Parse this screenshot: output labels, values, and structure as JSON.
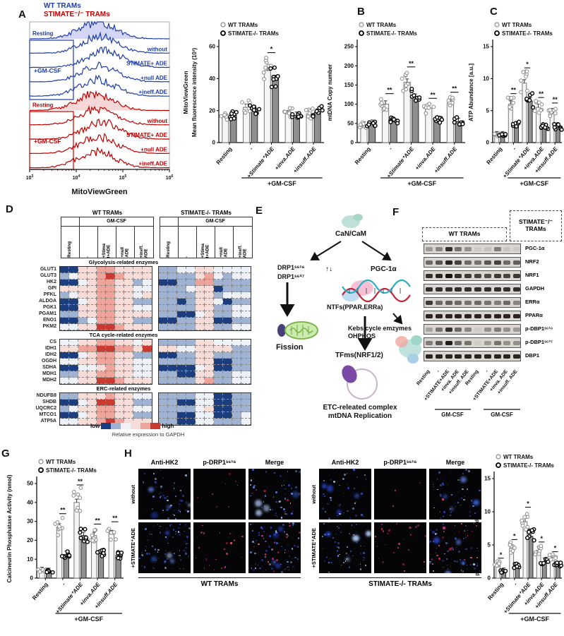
{
  "colors": {
    "wt_blue": "#1f3da8",
    "ko_red": "#c00000",
    "bar_wt_fill": "#f5f5f5",
    "bar_wt_stroke": "#7a7a7a",
    "bar_ko_fill": "#8f8f8f",
    "bar_ko_stroke": "#2a2a2a",
    "heat_palette": [
      "#1d3e7e",
      "#9fb2d2",
      "#eef1f7",
      "#f7dcd8",
      "#efa49b",
      "#c93a31"
    ],
    "if_blue": [
      "#2a47d8",
      "#6e93ff",
      "#b9d4ff",
      "#3b6cf0"
    ],
    "if_red": [
      "#ff2a55",
      "#e0379e",
      "#ff5f7a"
    ]
  },
  "shared": {
    "legend_wt": "WT TRAMs",
    "legend_ko": "STIMATE-/- TRAMs",
    "gmcsf": "+GM-CSF"
  },
  "panel_a": {
    "label": "A",
    "header_wt": "WT TRAMs",
    "header_ko": "STIMATE⁻/⁻ TRAMs",
    "flow": {
      "xlabel": "MitoViewGreen",
      "x_exponents": [
        3,
        4,
        5,
        6
      ],
      "gmcsf": "+GM-CSF",
      "row_labels": [
        "Resting",
        "without",
        "STIMATE+ ADE",
        "+null ADE",
        "+ineff.ADE"
      ],
      "peak_log10": [
        4.45,
        4.5,
        4.62,
        4.5,
        4.46,
        4.4,
        4.48,
        4.55,
        4.47,
        4.43
      ]
    }
  },
  "panel_b": {
    "label": "B"
  },
  "panel_c": {
    "label": "C"
  },
  "panel_d": {
    "label": "D",
    "header_wt": "WT TRAMs",
    "header_ko": "STIMATE-/- TRAMs",
    "gmcsf": "GM-CSF",
    "col_labels": [
      "Resting",
      "-",
      "+Stima\nt+ADE",
      "+null\nADE",
      "+ineff.\nADE"
    ],
    "sections": [
      {
        "title": "Glycolysis-related enzymes",
        "rows": [
          {
            "name": "GLUT1",
            "wt": [
              0,
              0,
              3,
              3,
              4,
              4,
              3,
              3,
              3,
              3
            ],
            "ko": [
              1,
              1,
              2,
              2,
              3,
              3,
              2,
              2,
              2,
              2
            ]
          },
          {
            "name": "GLUT3",
            "wt": [
              1,
              2,
              3,
              3,
              4,
              5,
              4,
              3,
              3,
              3
            ],
            "ko": [
              1,
              1,
              1,
              1,
              3,
              4,
              2,
              1,
              2,
              2
            ]
          },
          {
            "name": "HK2",
            "wt": [
              0,
              0,
              2,
              3,
              4,
              4,
              3,
              3,
              1,
              2
            ],
            "ko": [
              0,
              0,
              1,
              1,
              4,
              4,
              1,
              1,
              1,
              1
            ]
          },
          {
            "name": "GPI",
            "wt": [
              3,
              3,
              3,
              3,
              4,
              4,
              3,
              3,
              2,
              2
            ],
            "ko": [
              1,
              1,
              1,
              2,
              3,
              3,
              0,
              1,
              1,
              1
            ]
          },
          {
            "name": "PFKL",
            "wt": [
              1,
              2,
              3,
              3,
              4,
              4,
              3,
              3,
              2,
              3
            ],
            "ko": [
              1,
              1,
              1,
              1,
              3,
              3,
              1,
              2,
              2,
              2
            ]
          },
          {
            "name": "ALDOA",
            "wt": [
              0,
              0,
              2,
              3,
              4,
              4,
              3,
              3,
              1,
              1
            ],
            "ko": [
              1,
              1,
              0,
              1,
              3,
              3,
              2,
              0,
              1,
              1
            ]
          },
          {
            "name": "PGK1",
            "wt": [
              0,
              0,
              3,
              3,
              4,
              4,
              3,
              3,
              2,
              2
            ],
            "ko": [
              1,
              1,
              1,
              1,
              3,
              3,
              1,
              1,
              2,
              2
            ]
          },
          {
            "name": "PGAM1",
            "wt": [
              1,
              1,
              3,
              3,
              4,
              4,
              3,
              3,
              3,
              3
            ],
            "ko": [
              1,
              1,
              0,
              0,
              2,
              3,
              1,
              1,
              2,
              2
            ]
          },
          {
            "name": "ENO1",
            "wt": [
              0,
              0,
              1,
              2,
              4,
              4,
              3,
              3,
              1,
              1
            ],
            "ko": [
              0,
              0,
              1,
              1,
              3,
              3,
              0,
              0,
              1,
              1
            ]
          },
          {
            "name": "PKM2",
            "wt": [
              2,
              2,
              3,
              3,
              5,
              5,
              4,
              3,
              3,
              3
            ],
            "ko": [
              1,
              1,
              1,
              1,
              3,
              3,
              1,
              1,
              2,
              2
            ]
          }
        ]
      },
      {
        "title": "TCA cycle-related enzymes",
        "rows": [
          {
            "name": "CS",
            "wt": [
              2,
              2,
              3,
              3,
              4,
              4,
              3,
              3,
              2,
              3
            ],
            "ko": [
              1,
              1,
              1,
              1,
              3,
              3,
              2,
              2,
              2,
              2
            ]
          },
          {
            "name": "IDH1",
            "wt": [
              3,
              3,
              4,
              4,
              5,
              5,
              4,
              4,
              3,
              5
            ],
            "ko": [
              3,
              3,
              2,
              2,
              3,
              3,
              3,
              3,
              1,
              1
            ]
          },
          {
            "name": "IDH2",
            "wt": [
              0,
              0,
              2,
              3,
              4,
              4,
              3,
              3,
              1,
              1
            ],
            "ko": [
              0,
              0,
              1,
              1,
              3,
              3,
              1,
              1,
              1,
              1
            ]
          },
          {
            "name": "OGDH",
            "wt": [
              2,
              2,
              3,
              3,
              4,
              4,
              3,
              3,
              2,
              2
            ],
            "ko": [
              1,
              1,
              1,
              1,
              3,
              3,
              0,
              0,
              1,
              1
            ]
          },
          {
            "name": "SDHA",
            "wt": [
              0,
              0,
              2,
              2,
              3,
              4,
              3,
              3,
              2,
              2
            ],
            "ko": [
              0,
              0,
              0,
              0,
              2,
              3,
              0,
              0,
              1,
              1
            ]
          },
          {
            "name": "MDH1",
            "wt": [
              1,
              1,
              3,
              3,
              4,
              4,
              3,
              3,
              2,
              2
            ],
            "ko": [
              1,
              1,
              0,
              0,
              3,
              3,
              1,
              1,
              2,
              2
            ]
          },
          {
            "name": "MDH2",
            "wt": [
              2,
              2,
              3,
              3,
              5,
              5,
              4,
              3,
              3,
              3
            ],
            "ko": [
              1,
              1,
              1,
              1,
              3,
              4,
              1,
              1,
              2,
              2
            ]
          }
        ]
      },
      {
        "title": "ERC-related enzymes",
        "rows": [
          {
            "name": "NDUFB8",
            "wt": [
              1,
              1,
              3,
              3,
              3,
              4,
              3,
              3,
              2,
              2
            ],
            "ko": [
              1,
              1,
              1,
              1,
              2,
              2,
              0,
              0,
              1,
              1
            ]
          },
          {
            "name": "SHDB",
            "wt": [
              0,
              0,
              2,
              3,
              5,
              5,
              3,
              3,
              1,
              1
            ],
            "ko": [
              1,
              1,
              0,
              0,
              2,
              2,
              0,
              0,
              1,
              1
            ]
          },
          {
            "name": "UQCRC2",
            "wt": [
              1,
              2,
              3,
              3,
              4,
              4,
              3,
              3,
              2,
              2
            ],
            "ko": [
              1,
              1,
              1,
              1,
              2,
              3,
              0,
              0,
              1,
              1
            ]
          },
          {
            "name": "MTCO1",
            "wt": [
              0,
              0,
              2,
              3,
              4,
              4,
              3,
              3,
              1,
              1
            ],
            "ko": [
              1,
              1,
              0,
              0,
              2,
              2,
              0,
              0,
              1,
              2
            ]
          },
          {
            "name": "ATP5A",
            "wt": [
              2,
              2,
              3,
              3,
              4,
              5,
              4,
              3,
              3,
              3
            ],
            "ko": [
              1,
              1,
              0,
              0,
              2,
              2,
              1,
              1,
              1,
              2
            ]
          }
        ]
      }
    ],
    "legend": {
      "low": "low",
      "high": "high",
      "caption": "Relative expression to GAPDH"
    }
  },
  "panel_e": {
    "label": "E",
    "nodes": {
      "cancam": "CaN/CaM",
      "drp1a": "DRP1ˢ⁶¹⁶",
      "drp1b": "DRP1ˢ⁶³⁷",
      "updown": "↑↓",
      "pgc": "PGC-1α",
      "ntfs": "NTFs(PPAR,ERRa)",
      "kebs": "Kebs cycle emzymes\nOHPHOS",
      "tfms": "TFms(NRF1/2)",
      "fission": "Fission",
      "etc": "ETC-releated complex\nmtDNA Replication"
    }
  },
  "panel_f": {
    "label": "F",
    "header_wt": "WT TRAMs",
    "header_ko": "STIMATE⁻/⁻\nTRAMs",
    "blots": [
      {
        "name": "PGC-1α",
        "bands": [
          0.3,
          0.4,
          0.85,
          0.5,
          0.35,
          0.05,
          0.1,
          0.45,
          0.08,
          0.05
        ]
      },
      {
        "name": "NRF2",
        "bands": [
          0.55,
          0.65,
          0.9,
          0.75,
          0.55,
          0.5,
          0.65,
          0.75,
          0.55,
          0.6
        ]
      },
      {
        "name": "NRF1",
        "bands": [
          0.85,
          0.9,
          1,
          0.85,
          0.8,
          0.75,
          0.7,
          0.8,
          0.75,
          0.8
        ]
      },
      {
        "name": "GAPDH",
        "bands": [
          0.85,
          0.85,
          0.85,
          0.85,
          0.85,
          0.85,
          0.85,
          0.85,
          0.85,
          0.85
        ]
      },
      {
        "name": "ERRα",
        "bands": [
          0.8,
          0.55,
          0.6,
          0.55,
          0.5,
          0.55,
          0.5,
          0.45,
          0.55,
          0.4
        ]
      },
      {
        "name": "PPARα",
        "bands": [
          0.9,
          0.9,
          0.9,
          0.9,
          0.9,
          0.9,
          0.9,
          0.9,
          0.9,
          0.9
        ]
      },
      {
        "name": "p-DBP1ˢ⁶¹⁶",
        "bands": [
          0.25,
          0.5,
          0.85,
          0.55,
          0.4,
          0.05,
          0.35,
          0.45,
          0.35,
          0.3
        ]
      },
      {
        "name": "p-DBP1ˢ⁶³⁷",
        "bands": [
          0.45,
          0.65,
          0.95,
          0.55,
          0.5,
          0.05,
          0.3,
          0.5,
          0.35,
          0.35
        ]
      },
      {
        "name": "DBP1",
        "bands": [
          0.9,
          0.9,
          0.9,
          0.9,
          0.9,
          0.9,
          0.9,
          0.9,
          0.9,
          0.9
        ]
      }
    ],
    "lane_labels": [
      "Resting",
      "-",
      "+STIMATE+ADE",
      "+inva. ADE",
      "+insuff. ADE",
      "Resting",
      "-",
      "+STIMATE+ADE",
      "+inva. ADE",
      "+insuff. ADE"
    ],
    "gmcsf": "GM-CSF"
  },
  "panel_g": {
    "label": "G"
  },
  "panel_h": {
    "label": "H",
    "col_headers": [
      "Anti-HK2",
      "p-DRP1ˢ⁶¹⁶",
      "Merge"
    ],
    "row_labels": [
      "without",
      "+STIMATE⁺ADE"
    ],
    "group_labels": [
      "WT TRAMs",
      "STIMATE-/- TRAMs"
    ]
  },
  "chart_data": [
    {
      "id": "chartA",
      "panel": "A",
      "type": "bar",
      "ylabel_outer": "MitoViewGreen",
      "ylabel": "Mean fluorescence intensity (10³)",
      "ylim": [
        0,
        60
      ],
      "yticks": [
        0,
        20,
        40,
        60
      ],
      "categories": [
        "Resting",
        "-",
        "+Stimate⁺ADE",
        "+inva.ADE",
        "+insuff.ADE"
      ],
      "series": [
        {
          "name": "WT TRAMs",
          "values": [
            16,
            22,
            45,
            18,
            18
          ]
        },
        {
          "name": "STIMATE-/- TRAMs",
          "values": [
            17,
            21,
            40,
            17,
            19
          ]
        }
      ],
      "sig": [
        "",
        "",
        "*",
        "",
        ""
      ],
      "group_line_label": "+GM-CSF"
    },
    {
      "id": "chartB",
      "panel": "B",
      "type": "bar",
      "ylabel": "mtDNA Copy number",
      "ylim": [
        0,
        250
      ],
      "yticks": [
        0,
        50,
        100,
        150,
        200,
        250
      ],
      "categories": [
        "Resting",
        "-",
        "+Stimate⁺ADE",
        "+inva.ADE",
        "+insuff.ADE"
      ],
      "series": [
        {
          "name": "WT TRAMs",
          "values": [
            45,
            100,
            157,
            90,
            103
          ]
        },
        {
          "name": "STIMATE-/- TRAMs",
          "values": [
            50,
            57,
            118,
            60,
            55
          ]
        }
      ],
      "sig": [
        "",
        "**",
        "**",
        "**",
        "**"
      ],
      "group_line_label": "+GM-CSF"
    },
    {
      "id": "chartC",
      "panel": "C",
      "type": "bar",
      "ylabel": "ATP Abundance [a.u.]",
      "ylim": [
        0,
        15
      ],
      "yticks": [
        0,
        5,
        10,
        15
      ],
      "categories": [
        "Resting",
        "-",
        "+Stimate⁺ADE",
        "+inva.ADE",
        "+insuff.ADE"
      ],
      "series": [
        {
          "name": "WT TRAMs",
          "values": [
            1.2,
            6,
            9.3,
            5.5,
            4.8
          ]
        },
        {
          "name": "STIMATE-/- TRAMs",
          "values": [
            1.2,
            2.7,
            6.5,
            2.4,
            2.4
          ]
        }
      ],
      "sig": [
        "",
        "**",
        "*",
        "**",
        "**"
      ],
      "group_line_label": "+GM-CSF"
    },
    {
      "id": "chartG",
      "panel": "G",
      "type": "bar",
      "ylabel": "Calcineurin Phosphatase Activity (nmol)",
      "ylim": [
        0,
        50
      ],
      "yticks": [
        0,
        10,
        20,
        30,
        40,
        50
      ],
      "categories": [
        "Resting",
        "-",
        "+Stimate⁺ADE",
        "+inva.ADE",
        "+insuff.ADE"
      ],
      "series": [
        {
          "name": "WT TRAMs",
          "values": [
            4,
            27,
            40,
            22.5,
            23.5
          ]
        },
        {
          "name": "STIMATE-/- TRAMs",
          "values": [
            3.5,
            12.5,
            22.5,
            13,
            12
          ]
        }
      ],
      "sig": [
        "",
        "**",
        "**",
        "**",
        "**"
      ],
      "group_line_label": "+GM-CSF"
    },
    {
      "id": "chartH",
      "panel": "H",
      "type": "bar",
      "ylabel": "p-DRP1ˢ⁶¹⁶ mitochondrial translocation",
      "ylim": [
        0,
        15
      ],
      "yticks": [
        0,
        5,
        10,
        15
      ],
      "categories": [
        "Resting",
        "-",
        "+Stimate⁺ADE",
        "+inva.ADE",
        "+insuff.ADE"
      ],
      "series": [
        {
          "name": "WT TRAMs",
          "values": [
            2.2,
            4.5,
            8.5,
            4.2,
            3
          ]
        },
        {
          "name": "STIMATE-/- TRAMs",
          "values": [
            1,
            1.8,
            6.3,
            2.5,
            2
          ]
        }
      ],
      "sig": [
        "*",
        "*",
        "*",
        "*",
        "*"
      ],
      "group_line_label": "+GM-CSF"
    }
  ]
}
